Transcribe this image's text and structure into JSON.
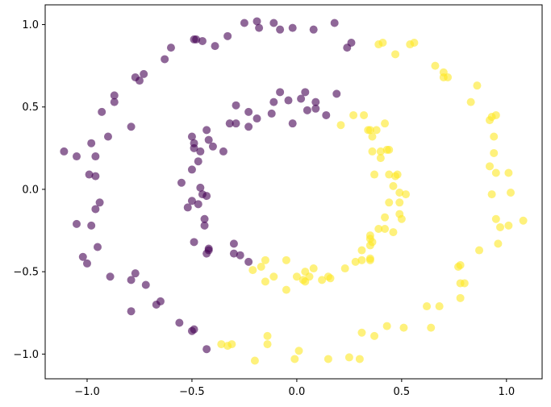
{
  "chart_data": {
    "type": "scatter",
    "title": "",
    "xlabel": "",
    "ylabel": "",
    "xlim": [
      -1.2,
      1.17
    ],
    "ylim": [
      -1.15,
      1.12
    ],
    "grid": false,
    "legend": "none",
    "x_ticks": [
      {
        "value": -1.0,
        "label": "−1.0"
      },
      {
        "value": -0.5,
        "label": "−0.5"
      },
      {
        "value": 0.0,
        "label": "0.0"
      },
      {
        "value": 0.5,
        "label": "0.5"
      },
      {
        "value": 1.0,
        "label": "1.0"
      }
    ],
    "y_ticks": [
      {
        "value": 1.0,
        "label": "1.0"
      },
      {
        "value": 0.5,
        "label": "0.5"
      },
      {
        "value": 0.0,
        "label": "0.0"
      },
      {
        "value": -0.5,
        "label": "−0.5"
      },
      {
        "value": -1.0,
        "label": "−1.0"
      }
    ],
    "series": [
      {
        "color": "#440154",
        "opacity": 0.6,
        "points": [
          [
            -1.11,
            0.23
          ],
          [
            -1.05,
            0.2
          ],
          [
            -0.98,
            0.28
          ],
          [
            -0.96,
            0.08
          ],
          [
            -0.99,
            0.09
          ],
          [
            -0.96,
            0.2
          ],
          [
            -0.9,
            0.32
          ],
          [
            -0.93,
            0.47
          ],
          [
            -0.87,
            0.53
          ],
          [
            -0.87,
            0.57
          ],
          [
            -0.79,
            0.38
          ],
          [
            -0.77,
            0.68
          ],
          [
            -0.75,
            0.66
          ],
          [
            -0.73,
            0.7
          ],
          [
            -0.63,
            0.79
          ],
          [
            -0.6,
            0.86
          ],
          [
            -0.49,
            0.91
          ],
          [
            -0.48,
            0.91
          ],
          [
            -0.45,
            0.9
          ],
          [
            -0.39,
            0.87
          ],
          [
            -0.33,
            0.93
          ],
          [
            -0.25,
            1.01
          ],
          [
            -0.19,
            1.02
          ],
          [
            -0.18,
            0.98
          ],
          [
            -0.11,
            1.01
          ],
          [
            -0.08,
            0.97
          ],
          [
            -0.02,
            0.98
          ],
          [
            0.08,
            0.97
          ],
          [
            0.18,
            1.01
          ],
          [
            0.24,
            0.86
          ],
          [
            0.26,
            0.89
          ],
          [
            -1.05,
            -0.21
          ],
          [
            -0.98,
            -0.22
          ],
          [
            -0.96,
            -0.12
          ],
          [
            -0.94,
            -0.08
          ],
          [
            -1.02,
            -0.41
          ],
          [
            -1.0,
            -0.45
          ],
          [
            -0.95,
            -0.35
          ],
          [
            -0.89,
            -0.53
          ],
          [
            -0.79,
            -0.55
          ],
          [
            -0.77,
            -0.51
          ],
          [
            -0.72,
            -0.58
          ],
          [
            -0.79,
            -0.74
          ],
          [
            -0.67,
            -0.7
          ],
          [
            -0.65,
            -0.68
          ],
          [
            -0.56,
            -0.81
          ],
          [
            -0.5,
            -0.86
          ],
          [
            -0.49,
            -0.85
          ],
          [
            -0.43,
            -0.97
          ],
          [
            -0.55,
            0.04
          ],
          [
            -0.5,
            0.12
          ],
          [
            -0.49,
            0.25
          ],
          [
            -0.49,
            0.28
          ],
          [
            -0.5,
            0.32
          ],
          [
            -0.52,
            -0.11
          ],
          [
            -0.5,
            -0.07
          ],
          [
            -0.47,
            -0.09
          ],
          [
            -0.46,
            0.01
          ],
          [
            -0.45,
            -0.03
          ],
          [
            -0.43,
            -0.04
          ],
          [
            -0.44,
            -0.18
          ],
          [
            -0.44,
            -0.22
          ],
          [
            -0.47,
            0.17
          ],
          [
            -0.46,
            0.23
          ],
          [
            -0.42,
            0.3
          ],
          [
            -0.43,
            0.36
          ],
          [
            -0.4,
            0.26
          ],
          [
            -0.35,
            0.23
          ],
          [
            -0.32,
            0.4
          ],
          [
            -0.29,
            0.51
          ],
          [
            -0.29,
            0.4
          ],
          [
            -0.23,
            0.47
          ],
          [
            -0.23,
            0.38
          ],
          [
            -0.19,
            0.43
          ],
          [
            -0.12,
            0.46
          ],
          [
            -0.11,
            0.53
          ],
          [
            -0.08,
            0.59
          ],
          [
            -0.04,
            0.54
          ],
          [
            -0.02,
            0.4
          ],
          [
            0.02,
            0.55
          ],
          [
            0.04,
            0.59
          ],
          [
            0.05,
            0.48
          ],
          [
            0.09,
            0.49
          ],
          [
            0.09,
            0.53
          ],
          [
            0.19,
            0.58
          ],
          [
            0.14,
            0.45
          ],
          [
            -0.49,
            -0.32
          ],
          [
            -0.42,
            -0.37
          ],
          [
            -0.43,
            -0.39
          ],
          [
            -0.42,
            -0.36
          ],
          [
            -0.3,
            -0.33
          ],
          [
            -0.3,
            -0.39
          ],
          [
            -0.27,
            -0.4
          ],
          [
            -0.23,
            -0.44
          ]
        ]
      },
      {
        "color": "#fde725",
        "opacity": 0.6,
        "points": [
          [
            0.41,
            0.89
          ],
          [
            0.39,
            0.88
          ],
          [
            0.54,
            0.88
          ],
          [
            0.56,
            0.89
          ],
          [
            0.47,
            0.82
          ],
          [
            0.66,
            0.75
          ],
          [
            0.7,
            0.71
          ],
          [
            0.7,
            0.68
          ],
          [
            0.72,
            0.68
          ],
          [
            0.86,
            0.63
          ],
          [
            0.83,
            0.53
          ],
          [
            0.92,
            0.42
          ],
          [
            0.93,
            0.44
          ],
          [
            0.95,
            0.45
          ],
          [
            0.94,
            0.32
          ],
          [
            0.94,
            0.22
          ],
          [
            0.92,
            0.14
          ],
          [
            0.95,
            0.1
          ],
          [
            1.01,
            0.1
          ],
          [
            1.02,
            -0.02
          ],
          [
            0.93,
            -0.03
          ],
          [
            0.95,
            -0.18
          ],
          [
            0.97,
            -0.23
          ],
          [
            1.01,
            -0.22
          ],
          [
            1.08,
            -0.19
          ],
          [
            0.96,
            -0.33
          ],
          [
            0.87,
            -0.37
          ],
          [
            0.78,
            -0.46
          ],
          [
            0.77,
            -0.47
          ],
          [
            0.78,
            -0.57
          ],
          [
            0.8,
            -0.57
          ],
          [
            0.78,
            -0.66
          ],
          [
            0.68,
            -0.71
          ],
          [
            0.62,
            -0.71
          ],
          [
            0.64,
            -0.84
          ],
          [
            0.51,
            -0.84
          ],
          [
            0.43,
            -0.83
          ],
          [
            0.37,
            -0.89
          ],
          [
            0.31,
            -0.87
          ],
          [
            0.25,
            -1.02
          ],
          [
            0.3,
            -1.03
          ],
          [
            0.15,
            -1.03
          ],
          [
            0.01,
            -0.98
          ],
          [
            -0.01,
            -1.03
          ],
          [
            -0.2,
            -1.04
          ],
          [
            -0.14,
            -0.89
          ],
          [
            -0.14,
            -0.94
          ],
          [
            -0.31,
            -0.94
          ],
          [
            -0.33,
            -0.95
          ],
          [
            -0.36,
            -0.94
          ],
          [
            0.21,
            0.39
          ],
          [
            0.27,
            0.45
          ],
          [
            0.32,
            0.45
          ],
          [
            0.34,
            0.36
          ],
          [
            0.36,
            0.32
          ],
          [
            0.38,
            0.36
          ],
          [
            0.35,
            0.36
          ],
          [
            0.42,
            0.4
          ],
          [
            0.4,
            0.23
          ],
          [
            0.43,
            0.24
          ],
          [
            0.44,
            0.24
          ],
          [
            0.4,
            0.19
          ],
          [
            0.36,
            0.23
          ],
          [
            0.37,
            0.09
          ],
          [
            0.44,
            0.09
          ],
          [
            0.47,
            0.08
          ],
          [
            0.48,
            0.09
          ],
          [
            0.46,
            0.02
          ],
          [
            0.49,
            -0.02
          ],
          [
            0.52,
            -0.03
          ],
          [
            0.44,
            -0.08
          ],
          [
            0.49,
            -0.08
          ],
          [
            0.49,
            -0.15
          ],
          [
            0.42,
            -0.17
          ],
          [
            0.39,
            -0.24
          ],
          [
            0.42,
            -0.24
          ],
          [
            0.35,
            -0.28
          ],
          [
            0.35,
            -0.3
          ],
          [
            0.36,
            -0.32
          ],
          [
            0.35,
            -0.34
          ],
          [
            0.46,
            -0.26
          ],
          [
            0.5,
            -0.18
          ],
          [
            0.31,
            -0.43
          ],
          [
            0.35,
            -0.43
          ],
          [
            0.28,
            -0.44
          ],
          [
            0.23,
            -0.48
          ],
          [
            0.15,
            -0.53
          ],
          [
            0.16,
            -0.54
          ],
          [
            0.12,
            -0.55
          ],
          [
            0.08,
            -0.48
          ],
          [
            0.04,
            -0.5
          ],
          [
            0.06,
            -0.53
          ],
          [
            0.04,
            -0.56
          ],
          [
            0.0,
            -0.53
          ],
          [
            -0.05,
            -0.61
          ],
          [
            -0.15,
            -0.43
          ],
          [
            -0.17,
            -0.47
          ],
          [
            -0.15,
            -0.56
          ],
          [
            -0.21,
            -0.49
          ],
          [
            -0.05,
            -0.43
          ],
          [
            -0.11,
            -0.53
          ],
          [
            0.03,
            -0.55
          ],
          [
            0.31,
            -0.37
          ],
          [
            0.35,
            -0.42
          ]
        ]
      }
    ]
  }
}
